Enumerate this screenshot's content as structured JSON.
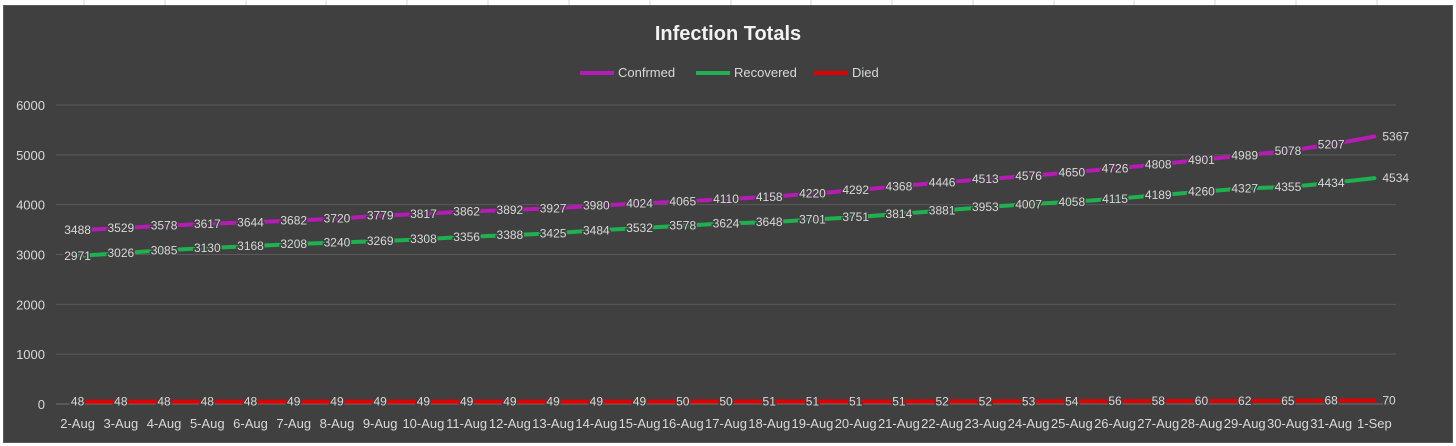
{
  "chart_data": {
    "type": "line",
    "title": "Infection Totals",
    "xlabel": "",
    "ylabel": "",
    "ylim": [
      0,
      6000
    ],
    "yticks": [
      0,
      1000,
      2000,
      3000,
      4000,
      5000,
      6000
    ],
    "grid": "horizontal",
    "legend_position": "top",
    "categories": [
      "2-Aug",
      "3-Aug",
      "4-Aug",
      "5-Aug",
      "6-Aug",
      "7-Aug",
      "8-Aug",
      "9-Aug",
      "10-Aug",
      "11-Aug",
      "12-Aug",
      "13-Aug",
      "14-Aug",
      "15-Aug",
      "16-Aug",
      "17-Aug",
      "18-Aug",
      "19-Aug",
      "20-Aug",
      "21-Aug",
      "22-Aug",
      "23-Aug",
      "24-Aug",
      "25-Aug",
      "26-Aug",
      "27-Aug",
      "28-Aug",
      "29-Aug",
      "30-Aug",
      "31-Aug",
      "1-Sep"
    ],
    "series": [
      {
        "name": "Confrmed",
        "color": "#b41cb4",
        "values": [
          3488,
          3529,
          3578,
          3617,
          3644,
          3682,
          3720,
          3779,
          3817,
          3862,
          3892,
          3927,
          3980,
          4024,
          4065,
          4110,
          4158,
          4220,
          4292,
          4368,
          4446,
          4513,
          4576,
          4650,
          4726,
          4808,
          4901,
          4989,
          5078,
          5207,
          5367
        ]
      },
      {
        "name": "Recovered",
        "color": "#1fb050",
        "values": [
          2971,
          3026,
          3085,
          3130,
          3168,
          3208,
          3240,
          3269,
          3308,
          3356,
          3388,
          3425,
          3484,
          3532,
          3578,
          3624,
          3648,
          3701,
          3751,
          3814,
          3881,
          3953,
          4007,
          4058,
          4115,
          4189,
          4260,
          4327,
          4355,
          4434,
          4534
        ]
      },
      {
        "name": "Died",
        "color": "#e00000",
        "values": [
          48,
          48,
          48,
          48,
          48,
          49,
          49,
          49,
          49,
          49,
          49,
          49,
          49,
          49,
          50,
          50,
          51,
          51,
          51,
          51,
          52,
          52,
          53,
          54,
          56,
          58,
          60,
          62,
          65,
          68,
          70
        ]
      }
    ]
  }
}
